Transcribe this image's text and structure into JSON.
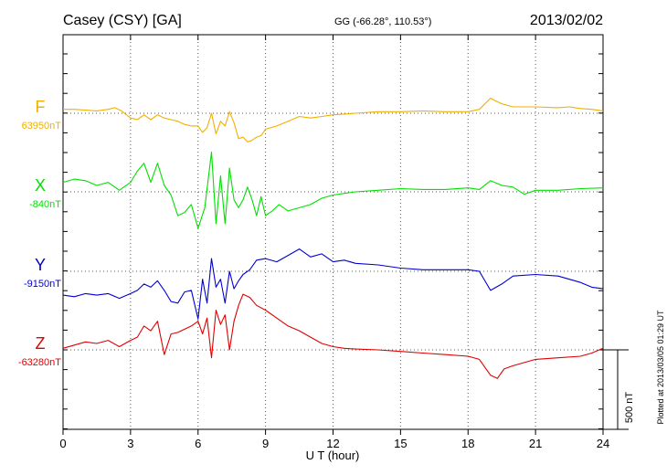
{
  "header": {
    "station": "Casey (CSY)  [GA]",
    "coords": "GG (-66.28°, 110.53°)",
    "date": "2013/02/02"
  },
  "footer": {
    "plotted": "Plotted at 2013/03/05 01:29 UT"
  },
  "colors": {
    "F": "#f0b000",
    "X": "#00e000",
    "Y": "#0000d0",
    "Z": "#e00000",
    "grid": "#555555",
    "axis": "#000000"
  },
  "chart_data": {
    "type": "line",
    "title": "",
    "xlabel": "U T (hour)",
    "ylabel": "",
    "xlim": [
      0,
      24
    ],
    "xticks": [
      0,
      3,
      6,
      9,
      12,
      15,
      18,
      21,
      24
    ],
    "scale_bar": {
      "value_nT": 500,
      "label": "500 nT"
    },
    "grid": true,
    "series": [
      {
        "name": "F",
        "baseline_label": "63950nT",
        "baseline_nT": 63950,
        "x": [
          0,
          0.5,
          1,
          1.5,
          2,
          2.3,
          2.6,
          3,
          3.3,
          3.6,
          3.9,
          4.2,
          4.5,
          4.8,
          5.1,
          5.4,
          5.7,
          6,
          6.2,
          6.4,
          6.6,
          6.8,
          7,
          7.2,
          7.4,
          7.6,
          7.8,
          8,
          8.2,
          8.4,
          8.6,
          8.8,
          9,
          9.5,
          10,
          10.5,
          11,
          11.5,
          12,
          12.5,
          13,
          14,
          15,
          16,
          17,
          18,
          18.5,
          19,
          19.2,
          19.5,
          20,
          21,
          22,
          22.5,
          23,
          23.5,
          24
        ],
        "values": [
          25,
          25,
          20,
          15,
          25,
          35,
          15,
          -30,
          -40,
          -10,
          -40,
          -10,
          -30,
          -40,
          -50,
          -70,
          -80,
          -80,
          -120,
          -90,
          0,
          -130,
          -50,
          -80,
          10,
          -60,
          -160,
          -150,
          -180,
          -170,
          -150,
          -140,
          -100,
          -80,
          -50,
          -20,
          -30,
          -20,
          -10,
          -5,
          0,
          10,
          10,
          15,
          10,
          10,
          25,
          95,
          80,
          60,
          40,
          40,
          35,
          40,
          30,
          25,
          15
        ]
      },
      {
        "name": "X",
        "baseline_label": "-840nT",
        "baseline_nT": -840,
        "x": [
          0,
          0.5,
          1,
          1.5,
          2,
          2.5,
          3,
          3.3,
          3.6,
          3.9,
          4.2,
          4.5,
          4.8,
          5.1,
          5.4,
          5.7,
          6,
          6.3,
          6.6,
          6.8,
          7,
          7.2,
          7.4,
          7.6,
          7.8,
          8,
          8.2,
          8.4,
          8.6,
          8.8,
          9,
          9.3,
          9.6,
          10,
          10.5,
          11,
          11.5,
          12,
          12.5,
          13,
          14,
          15,
          16,
          17,
          18,
          18.5,
          19,
          19.5,
          20,
          20.5,
          21,
          22,
          23,
          24
        ],
        "values": [
          60,
          80,
          70,
          40,
          60,
          10,
          60,
          130,
          180,
          60,
          180,
          40,
          -20,
          -150,
          -130,
          -80,
          -230,
          -100,
          250,
          -200,
          100,
          -200,
          150,
          -50,
          -100,
          -50,
          30,
          -50,
          -150,
          -30,
          -150,
          -120,
          -80,
          -120,
          -100,
          -80,
          -40,
          -20,
          -10,
          0,
          10,
          20,
          15,
          15,
          25,
          15,
          70,
          40,
          30,
          -15,
          10,
          10,
          20,
          25
        ]
      },
      {
        "name": "Y",
        "baseline_label": "-9150nT",
        "baseline_nT": -9150,
        "x": [
          0,
          0.5,
          1,
          1.5,
          2,
          2.5,
          3,
          3.3,
          3.6,
          3.9,
          4.2,
          4.5,
          4.8,
          5.1,
          5.4,
          5.7,
          6,
          6.2,
          6.4,
          6.6,
          6.8,
          7,
          7.2,
          7.4,
          7.6,
          7.8,
          8,
          8.3,
          8.6,
          9,
          9.5,
          10,
          10.5,
          11,
          11.5,
          12,
          12.5,
          13,
          14,
          15,
          16,
          17,
          18,
          18.5,
          19,
          19.5,
          20,
          21,
          22,
          23,
          23.5,
          24
        ],
        "values": [
          -150,
          -160,
          -140,
          -150,
          -140,
          -170,
          -140,
          -120,
          -80,
          -100,
          -60,
          -120,
          -190,
          -200,
          -130,
          -120,
          -300,
          -50,
          -200,
          80,
          -100,
          -50,
          -200,
          0,
          -110,
          -60,
          -20,
          10,
          70,
          80,
          60,
          100,
          140,
          90,
          110,
          60,
          70,
          50,
          40,
          20,
          10,
          10,
          10,
          0,
          -120,
          -80,
          -30,
          -20,
          -30,
          -70,
          -100,
          -110
        ]
      },
      {
        "name": "Z",
        "baseline_label": "-63280nT",
        "baseline_nT": -63280,
        "x": [
          0,
          0.5,
          1,
          1.5,
          2,
          2.5,
          3,
          3.3,
          3.6,
          3.9,
          4.2,
          4.5,
          4.8,
          5.1,
          5.4,
          5.7,
          6,
          6.2,
          6.4,
          6.6,
          6.8,
          7,
          7.2,
          7.4,
          7.6,
          7.8,
          8,
          8.3,
          8.6,
          9,
          9.5,
          10,
          10.5,
          11,
          11.5,
          12,
          12.5,
          13,
          14,
          15,
          16,
          17,
          18,
          18.5,
          19,
          19.3,
          19.6,
          20,
          21,
          22,
          23,
          23.5,
          24
        ],
        "values": [
          10,
          30,
          50,
          40,
          60,
          20,
          60,
          80,
          150,
          120,
          180,
          -30,
          100,
          110,
          130,
          150,
          180,
          100,
          200,
          -50,
          250,
          160,
          220,
          0,
          180,
          280,
          350,
          330,
          280,
          250,
          200,
          150,
          120,
          80,
          40,
          20,
          10,
          5,
          0,
          -10,
          -20,
          -30,
          -40,
          -60,
          -160,
          -180,
          -120,
          -100,
          -60,
          -50,
          -40,
          -20,
          10
        ]
      }
    ]
  }
}
